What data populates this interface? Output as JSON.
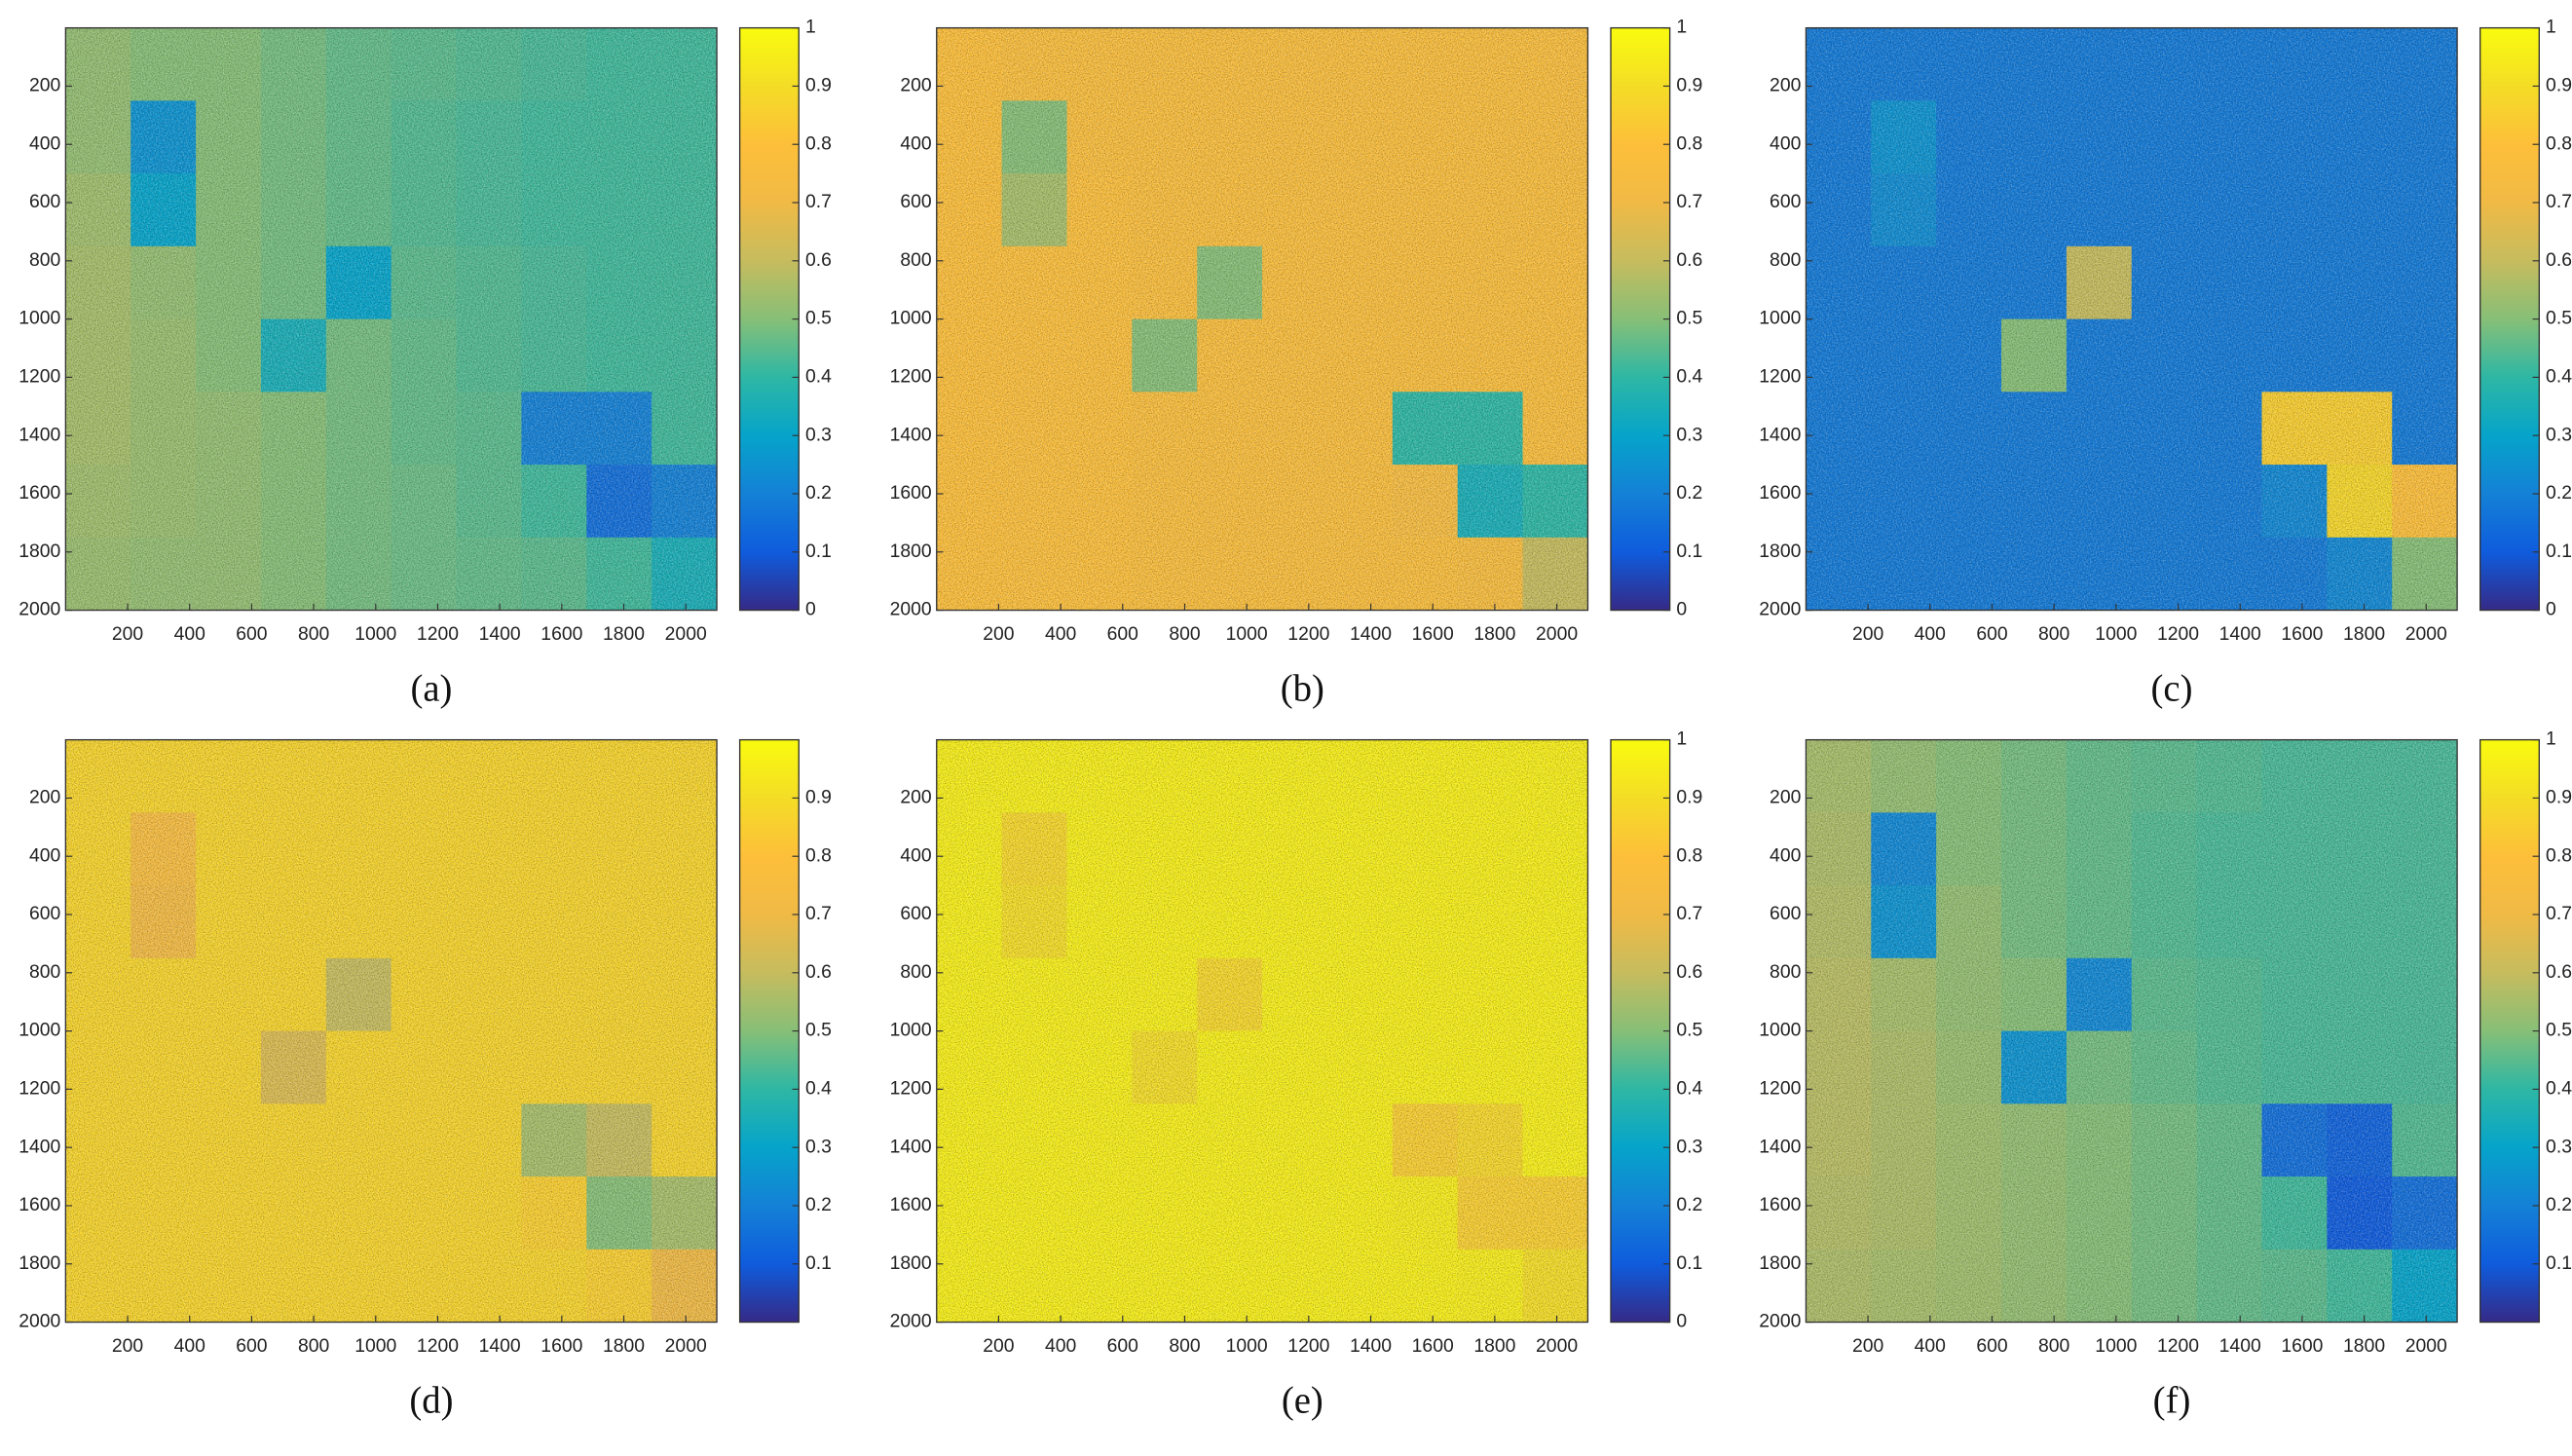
{
  "chart_data": [
    {
      "type": "heatmap",
      "caption": "(a)",
      "xlim": [
        0,
        2100
      ],
      "ylim": [
        0,
        2000
      ],
      "yreverse": true,
      "xticks": [
        200,
        400,
        600,
        800,
        1000,
        1200,
        1400,
        1600,
        1800,
        2000
      ],
      "yticks": [
        200,
        400,
        600,
        800,
        1000,
        1200,
        1400,
        1600,
        1800,
        2000
      ],
      "clim": [
        0,
        1
      ],
      "cticks": [
        0,
        0.1,
        0.2,
        0.3,
        0.4,
        0.5,
        0.6,
        0.7,
        0.8,
        0.9,
        1
      ],
      "z": [
        [
          0.52,
          0.5,
          0.5,
          0.48,
          0.46,
          0.45,
          0.44,
          0.43,
          0.42,
          0.42
        ],
        [
          0.52,
          0.25,
          0.5,
          0.48,
          0.46,
          0.44,
          0.43,
          0.42,
          0.42,
          0.42
        ],
        [
          0.54,
          0.3,
          0.5,
          0.48,
          0.46,
          0.44,
          0.43,
          0.42,
          0.42,
          0.42
        ],
        [
          0.55,
          0.52,
          0.5,
          0.48,
          0.3,
          0.45,
          0.44,
          0.43,
          0.42,
          0.42
        ],
        [
          0.55,
          0.53,
          0.5,
          0.35,
          0.48,
          0.46,
          0.44,
          0.43,
          0.42,
          0.42
        ],
        [
          0.55,
          0.53,
          0.52,
          0.5,
          0.48,
          0.46,
          0.45,
          0.2,
          0.2,
          0.42
        ],
        [
          0.54,
          0.53,
          0.52,
          0.5,
          0.48,
          0.47,
          0.45,
          0.42,
          0.15,
          0.2
        ],
        [
          0.53,
          0.52,
          0.52,
          0.5,
          0.48,
          0.47,
          0.46,
          0.45,
          0.42,
          0.35
        ]
      ]
    },
    {
      "type": "heatmap",
      "caption": "(b)",
      "xlim": [
        0,
        2100
      ],
      "ylim": [
        0,
        2000
      ],
      "yreverse": true,
      "xticks": [
        200,
        400,
        600,
        800,
        1000,
        1200,
        1400,
        1600,
        1800,
        2000
      ],
      "yticks": [
        200,
        400,
        600,
        800,
        1000,
        1200,
        1400,
        1600,
        1800,
        2000
      ],
      "clim": [
        0,
        1
      ],
      "cticks": [
        0,
        0.1,
        0.2,
        0.3,
        0.4,
        0.5,
        0.6,
        0.7,
        0.8,
        0.9,
        1
      ],
      "z": [
        [
          0.8,
          0.78,
          0.78,
          0.78,
          0.78,
          0.78,
          0.78,
          0.78,
          0.78,
          0.78
        ],
        [
          0.8,
          0.5,
          0.78,
          0.78,
          0.78,
          0.78,
          0.78,
          0.78,
          0.78,
          0.78
        ],
        [
          0.8,
          0.55,
          0.79,
          0.78,
          0.78,
          0.78,
          0.78,
          0.78,
          0.78,
          0.78
        ],
        [
          0.8,
          0.79,
          0.79,
          0.78,
          0.5,
          0.78,
          0.78,
          0.78,
          0.78,
          0.78
        ],
        [
          0.8,
          0.79,
          0.79,
          0.5,
          0.78,
          0.78,
          0.78,
          0.78,
          0.78,
          0.78
        ],
        [
          0.8,
          0.79,
          0.79,
          0.78,
          0.78,
          0.78,
          0.78,
          0.4,
          0.4,
          0.78
        ],
        [
          0.8,
          0.79,
          0.79,
          0.78,
          0.78,
          0.78,
          0.78,
          0.75,
          0.35,
          0.4
        ],
        [
          0.8,
          0.79,
          0.79,
          0.78,
          0.78,
          0.78,
          0.78,
          0.78,
          0.76,
          0.6
        ]
      ]
    },
    {
      "type": "heatmap",
      "caption": "(c)",
      "xlim": [
        0,
        2100
      ],
      "ylim": [
        0,
        2000
      ],
      "yreverse": true,
      "xticks": [
        200,
        400,
        600,
        800,
        1000,
        1200,
        1400,
        1600,
        1800,
        2000
      ],
      "yticks": [
        200,
        400,
        600,
        800,
        1000,
        1200,
        1400,
        1600,
        1800,
        2000
      ],
      "clim": [
        0,
        1
      ],
      "cticks": [
        0,
        0.1,
        0.2,
        0.3,
        0.4,
        0.5,
        0.6,
        0.7,
        0.8,
        0.9,
        1
      ],
      "z": [
        [
          0.18,
          0.18,
          0.18,
          0.18,
          0.18,
          0.18,
          0.18,
          0.18,
          0.18,
          0.18
        ],
        [
          0.18,
          0.25,
          0.18,
          0.18,
          0.18,
          0.18,
          0.18,
          0.18,
          0.18,
          0.18
        ],
        [
          0.18,
          0.23,
          0.18,
          0.18,
          0.18,
          0.18,
          0.18,
          0.18,
          0.18,
          0.18
        ],
        [
          0.18,
          0.18,
          0.18,
          0.18,
          0.6,
          0.18,
          0.18,
          0.18,
          0.18,
          0.18
        ],
        [
          0.18,
          0.18,
          0.18,
          0.5,
          0.18,
          0.18,
          0.18,
          0.18,
          0.18,
          0.18
        ],
        [
          0.18,
          0.18,
          0.18,
          0.18,
          0.18,
          0.18,
          0.18,
          0.85,
          0.85,
          0.18
        ],
        [
          0.18,
          0.18,
          0.18,
          0.18,
          0.18,
          0.18,
          0.18,
          0.22,
          0.88,
          0.8
        ],
        [
          0.18,
          0.18,
          0.18,
          0.18,
          0.18,
          0.18,
          0.18,
          0.18,
          0.22,
          0.5
        ]
      ]
    },
    {
      "type": "heatmap",
      "caption": "(d)",
      "xlim": [
        0,
        2100
      ],
      "ylim": [
        0,
        2000
      ],
      "yreverse": true,
      "xticks": [
        200,
        400,
        600,
        800,
        1000,
        1200,
        1400,
        1600,
        1800,
        2000
      ],
      "yticks": [
        200,
        400,
        600,
        800,
        1000,
        1200,
        1400,
        1600,
        1800,
        2000
      ],
      "clim": [
        0,
        1
      ],
      "cticks": [
        0.1,
        0.2,
        0.3,
        0.4,
        0.5,
        0.6,
        0.7,
        0.8,
        0.9
      ],
      "z": [
        [
          0.87,
          0.87,
          0.87,
          0.87,
          0.87,
          0.87,
          0.87,
          0.87,
          0.87,
          0.87
        ],
        [
          0.87,
          0.75,
          0.87,
          0.87,
          0.87,
          0.87,
          0.87,
          0.87,
          0.87,
          0.87
        ],
        [
          0.87,
          0.72,
          0.87,
          0.87,
          0.87,
          0.87,
          0.87,
          0.87,
          0.87,
          0.87
        ],
        [
          0.87,
          0.87,
          0.87,
          0.87,
          0.6,
          0.87,
          0.87,
          0.87,
          0.87,
          0.87
        ],
        [
          0.87,
          0.87,
          0.87,
          0.65,
          0.87,
          0.87,
          0.87,
          0.87,
          0.87,
          0.87
        ],
        [
          0.87,
          0.87,
          0.87,
          0.87,
          0.87,
          0.87,
          0.87,
          0.55,
          0.6,
          0.87
        ],
        [
          0.87,
          0.87,
          0.87,
          0.87,
          0.87,
          0.87,
          0.87,
          0.85,
          0.5,
          0.55
        ],
        [
          0.87,
          0.87,
          0.87,
          0.87,
          0.87,
          0.87,
          0.87,
          0.87,
          0.85,
          0.7
        ]
      ]
    },
    {
      "type": "heatmap",
      "caption": "(e)",
      "xlim": [
        0,
        2100
      ],
      "ylim": [
        0,
        2000
      ],
      "yreverse": true,
      "xticks": [
        200,
        400,
        600,
        800,
        1000,
        1200,
        1400,
        1600,
        1800,
        2000
      ],
      "yticks": [
        200,
        400,
        600,
        800,
        1000,
        1200,
        1400,
        1600,
        1800,
        2000
      ],
      "clim": [
        0,
        1
      ],
      "cticks": [
        0,
        0.1,
        0.2,
        0.3,
        0.4,
        0.5,
        0.6,
        0.7,
        0.8,
        0.9,
        1
      ],
      "z": [
        [
          0.96,
          0.96,
          0.96,
          0.96,
          0.96,
          0.96,
          0.96,
          0.96,
          0.96,
          0.96
        ],
        [
          0.96,
          0.88,
          0.96,
          0.96,
          0.96,
          0.96,
          0.96,
          0.96,
          0.96,
          0.96
        ],
        [
          0.96,
          0.9,
          0.96,
          0.96,
          0.96,
          0.96,
          0.96,
          0.96,
          0.96,
          0.96
        ],
        [
          0.96,
          0.96,
          0.96,
          0.96,
          0.88,
          0.96,
          0.96,
          0.96,
          0.96,
          0.96
        ],
        [
          0.96,
          0.96,
          0.96,
          0.9,
          0.96,
          0.96,
          0.96,
          0.96,
          0.96,
          0.96
        ],
        [
          0.96,
          0.96,
          0.96,
          0.96,
          0.96,
          0.96,
          0.96,
          0.85,
          0.88,
          0.96
        ],
        [
          0.96,
          0.96,
          0.96,
          0.96,
          0.96,
          0.96,
          0.96,
          0.95,
          0.85,
          0.85
        ],
        [
          0.96,
          0.96,
          0.96,
          0.96,
          0.96,
          0.96,
          0.96,
          0.96,
          0.95,
          0.9
        ]
      ]
    },
    {
      "type": "heatmap",
      "caption": "(f)",
      "xlim": [
        0,
        2100
      ],
      "ylim": [
        0,
        2000
      ],
      "yreverse": true,
      "xticks": [
        200,
        400,
        600,
        800,
        1000,
        1200,
        1400,
        1600,
        1800,
        2000
      ],
      "yticks": [
        200,
        400,
        600,
        800,
        1000,
        1200,
        1400,
        1600,
        1800,
        2000
      ],
      "clim": [
        0,
        1
      ],
      "cticks": [
        0.1,
        0.2,
        0.3,
        0.4,
        0.5,
        0.6,
        0.7,
        0.8,
        0.9,
        1
      ],
      "z": [
        [
          0.55,
          0.52,
          0.5,
          0.48,
          0.46,
          0.45,
          0.44,
          0.43,
          0.43,
          0.43
        ],
        [
          0.56,
          0.22,
          0.5,
          0.48,
          0.46,
          0.44,
          0.43,
          0.43,
          0.43,
          0.43
        ],
        [
          0.57,
          0.25,
          0.52,
          0.48,
          0.46,
          0.44,
          0.43,
          0.43,
          0.43,
          0.43
        ],
        [
          0.58,
          0.55,
          0.52,
          0.5,
          0.22,
          0.45,
          0.44,
          0.43,
          0.43,
          0.43
        ],
        [
          0.58,
          0.56,
          0.53,
          0.25,
          0.48,
          0.46,
          0.44,
          0.43,
          0.43,
          0.43
        ],
        [
          0.58,
          0.56,
          0.54,
          0.52,
          0.5,
          0.48,
          0.46,
          0.15,
          0.12,
          0.44
        ],
        [
          0.57,
          0.56,
          0.54,
          0.52,
          0.5,
          0.48,
          0.46,
          0.42,
          0.1,
          0.15
        ],
        [
          0.56,
          0.55,
          0.54,
          0.52,
          0.5,
          0.48,
          0.46,
          0.45,
          0.42,
          0.3
        ]
      ]
    }
  ]
}
